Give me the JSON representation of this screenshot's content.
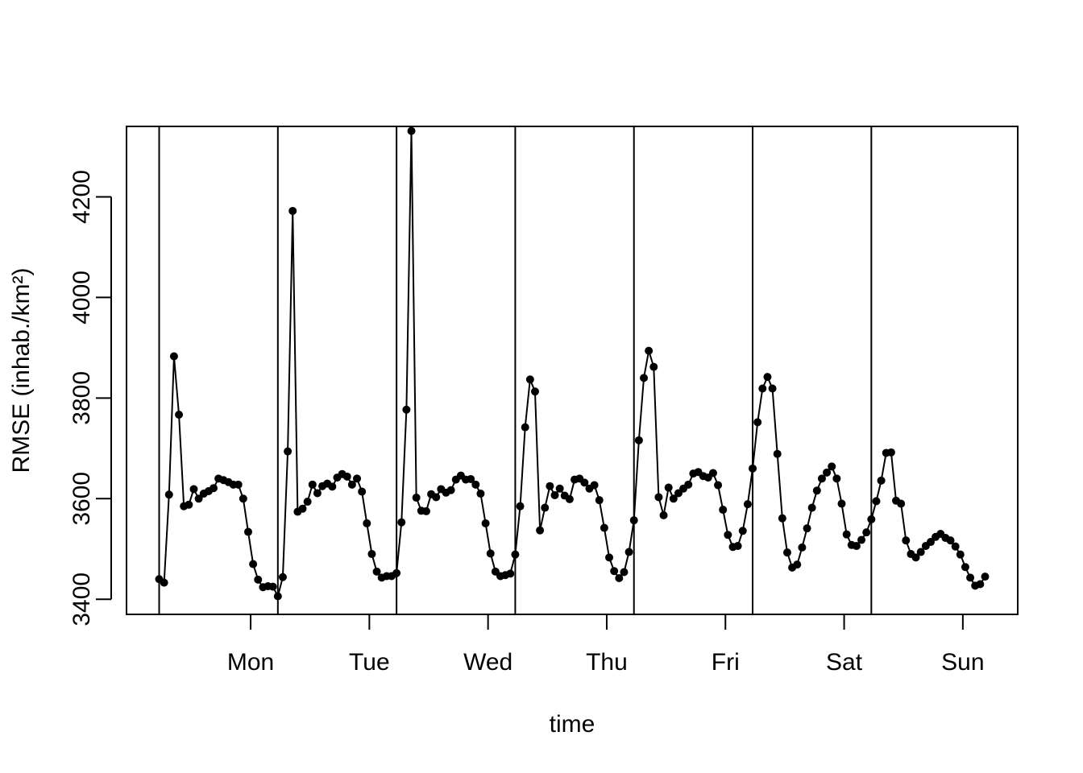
{
  "chart_data": {
    "type": "line",
    "title": "",
    "xlabel": "time",
    "ylabel": "RMSE (inhab./km²)",
    "ylim": [
      3370,
      4340
    ],
    "yticks": [
      3400,
      3600,
      3800,
      4000,
      4200
    ],
    "day_labels": [
      "Mon",
      "Tue",
      "Wed",
      "Thu",
      "Fri",
      "Sat",
      "Sun"
    ],
    "day_label_positions": [
      10.5,
      34.5,
      58.5,
      82.5,
      106.5,
      130.5,
      154.5
    ],
    "day_separators": [
      -8,
      16,
      40,
      64,
      88,
      112,
      136
    ],
    "x_range": [
      -14.6,
      165.6
    ],
    "grid": false,
    "legend": "none",
    "marker": "filled-circle",
    "line_color": "#000000",
    "series": [
      {
        "values": [
          3440,
          3433,
          3608,
          3883,
          3767,
          3585,
          3588,
          3619,
          3600,
          3610,
          3615,
          3621,
          3640,
          3637,
          3633,
          3628,
          3628,
          3600,
          3534,
          3470,
          3439,
          3424,
          3426,
          3425,
          3406,
          3444,
          3694,
          4172,
          3574,
          3580,
          3594,
          3628,
          3611,
          3625,
          3630,
          3624,
          3642,
          3649,
          3644,
          3628,
          3640,
          3614,
          3551,
          3490,
          3455,
          3443,
          3446,
          3446,
          3452,
          3553,
          3777,
          4331,
          3602,
          3576,
          3575,
          3609,
          3603,
          3619,
          3612,
          3617,
          3638,
          3646,
          3638,
          3639,
          3628,
          3610,
          3551,
          3491,
          3455,
          3446,
          3448,
          3451,
          3489,
          3585,
          3742,
          3837,
          3813,
          3537,
          3582,
          3625,
          3607,
          3620,
          3606,
          3599,
          3638,
          3640,
          3632,
          3620,
          3627,
          3597,
          3542,
          3483,
          3456,
          3442,
          3454,
          3494,
          3557,
          3716,
          3840,
          3894,
          3862,
          3603,
          3567,
          3622,
          3600,
          3611,
          3620,
          3628,
          3650,
          3653,
          3645,
          3642,
          3651,
          3627,
          3578,
          3528,
          3504,
          3506,
          3536,
          3589,
          3660,
          3752,
          3819,
          3842,
          3819,
          3689,
          3561,
          3493,
          3463,
          3469,
          3503,
          3541,
          3582,
          3616,
          3640,
          3652,
          3664,
          3640,
          3590,
          3529,
          3508,
          3506,
          3518,
          3533,
          3559,
          3595,
          3636,
          3691,
          3692,
          3596,
          3590,
          3517,
          3490,
          3483,
          3494,
          3506,
          3514,
          3524,
          3530,
          3522,
          3517,
          3505,
          3489,
          3464,
          3443,
          3427,
          3430,
          3445
        ]
      }
    ]
  }
}
